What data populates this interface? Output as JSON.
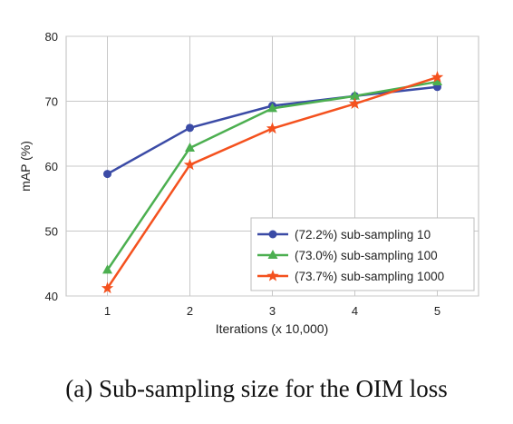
{
  "caption": "(a) Sub-sampling size for the OIM loss",
  "chart_data": {
    "type": "line",
    "xlabel": "Iterations (x 10,000)",
    "ylabel": "mAP (%)",
    "x": [
      1,
      2,
      3,
      4,
      5
    ],
    "xlim": [
      0.5,
      5.5
    ],
    "ylim": [
      40,
      80
    ],
    "yticks": [
      40,
      50,
      60,
      70,
      80
    ],
    "grid": true,
    "legend_position": "bottom-right",
    "series": [
      {
        "name": "(72.2%) sub-sampling 10",
        "values": [
          58.8,
          65.9,
          69.3,
          70.8,
          72.2
        ],
        "color": "#3b4ba6",
        "marker": "circle"
      },
      {
        "name": "(73.0%) sub-sampling 100",
        "values": [
          44.0,
          62.8,
          68.9,
          70.8,
          73.0
        ],
        "color": "#4caf50",
        "marker": "triangle"
      },
      {
        "name": "(73.7%) sub-sampling 1000",
        "values": [
          41.2,
          60.2,
          65.8,
          69.6,
          73.7
        ],
        "color": "#f4511e",
        "marker": "star"
      }
    ]
  }
}
